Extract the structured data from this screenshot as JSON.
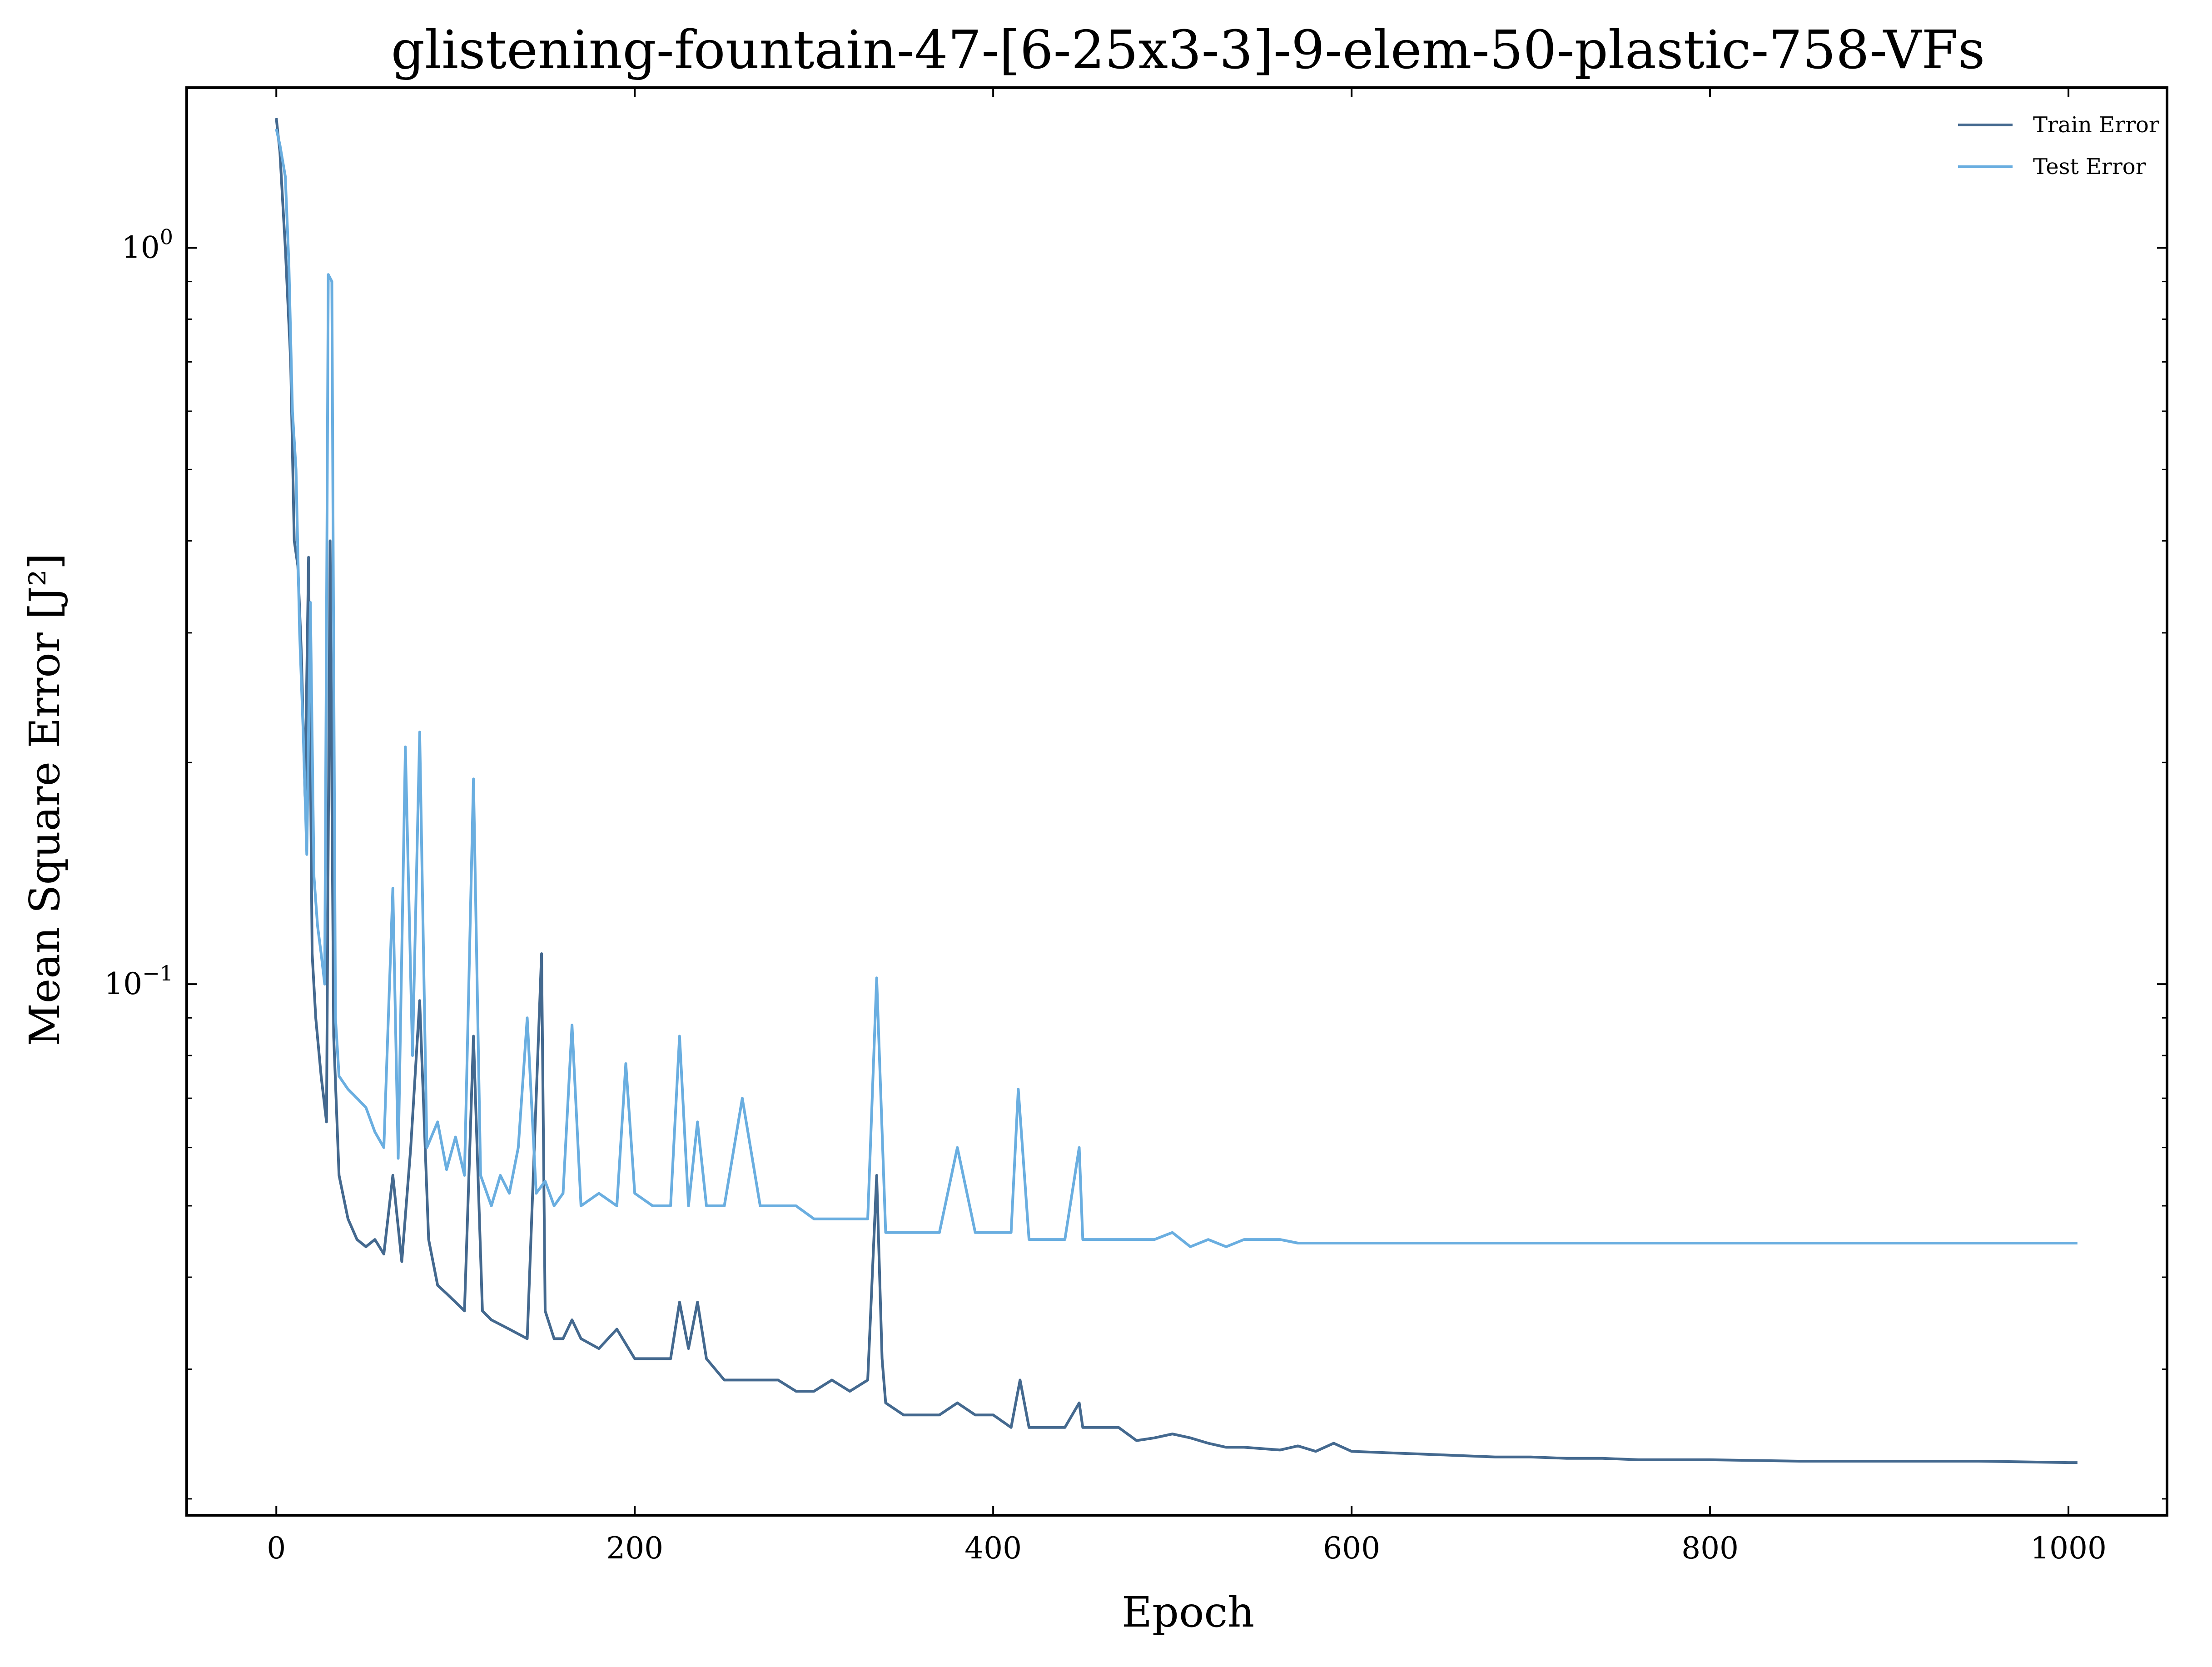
{
  "chart_data": {
    "type": "line",
    "title": "glistening-fountain-47-[6-25x3-3]-9-elem-50-plastic-758-VFs",
    "xlabel": "Epoch",
    "ylabel": "Mean Square Error [J²]",
    "yscale": "log",
    "xlim": [
      -50,
      1055
    ],
    "ylim": [
      0.019,
      1.65
    ],
    "xticks": [
      {
        "value": 0,
        "label": "0"
      },
      {
        "value": 200,
        "label": "200"
      },
      {
        "value": 400,
        "label": "400"
      },
      {
        "value": 600,
        "label": "600"
      },
      {
        "value": 800,
        "label": "800"
      },
      {
        "value": 1000,
        "label": "1000"
      }
    ],
    "yticks": [
      {
        "value": 1.0,
        "base": "10",
        "exp": "0"
      },
      {
        "value": 0.1,
        "base": "10",
        "exp": "−1"
      }
    ],
    "grid": false,
    "legend_position": "top-right",
    "series": [
      {
        "name": "Train Error",
        "color": "#44698f",
        "points": [
          [
            0,
            1.5
          ],
          [
            2,
            1.35
          ],
          [
            5,
            1.0
          ],
          [
            8,
            0.7
          ],
          [
            10,
            0.4
          ],
          [
            12,
            0.37
          ],
          [
            14,
            0.28
          ],
          [
            16,
            0.18
          ],
          [
            18,
            0.38
          ],
          [
            20,
            0.11
          ],
          [
            22,
            0.09
          ],
          [
            25,
            0.075
          ],
          [
            28,
            0.065
          ],
          [
            30,
            0.4
          ],
          [
            32,
            0.085
          ],
          [
            35,
            0.055
          ],
          [
            40,
            0.048
          ],
          [
            45,
            0.045
          ],
          [
            50,
            0.044
          ],
          [
            55,
            0.045
          ],
          [
            60,
            0.043
          ],
          [
            65,
            0.055
          ],
          [
            70,
            0.042
          ],
          [
            75,
            0.06
          ],
          [
            80,
            0.095
          ],
          [
            85,
            0.045
          ],
          [
            90,
            0.039
          ],
          [
            95,
            0.038
          ],
          [
            100,
            0.037
          ],
          [
            105,
            0.036
          ],
          [
            110,
            0.085
          ],
          [
            115,
            0.036
          ],
          [
            120,
            0.035
          ],
          [
            130,
            0.034
          ],
          [
            140,
            0.033
          ],
          [
            145,
            0.07
          ],
          [
            148,
            0.11
          ],
          [
            150,
            0.036
          ],
          [
            155,
            0.033
          ],
          [
            160,
            0.033
          ],
          [
            165,
            0.035
          ],
          [
            170,
            0.033
          ],
          [
            180,
            0.032
          ],
          [
            190,
            0.034
          ],
          [
            200,
            0.031
          ],
          [
            210,
            0.031
          ],
          [
            220,
            0.031
          ],
          [
            225,
            0.037
          ],
          [
            230,
            0.032
          ],
          [
            235,
            0.037
          ],
          [
            240,
            0.031
          ],
          [
            250,
            0.029
          ],
          [
            260,
            0.029
          ],
          [
            270,
            0.029
          ],
          [
            280,
            0.029
          ],
          [
            290,
            0.028
          ],
          [
            300,
            0.028
          ],
          [
            310,
            0.029
          ],
          [
            320,
            0.028
          ],
          [
            330,
            0.029
          ],
          [
            335,
            0.055
          ],
          [
            338,
            0.031
          ],
          [
            340,
            0.027
          ],
          [
            350,
            0.026
          ],
          [
            360,
            0.026
          ],
          [
            370,
            0.026
          ],
          [
            380,
            0.027
          ],
          [
            390,
            0.026
          ],
          [
            400,
            0.026
          ],
          [
            410,
            0.025
          ],
          [
            415,
            0.029
          ],
          [
            420,
            0.025
          ],
          [
            430,
            0.025
          ],
          [
            440,
            0.025
          ],
          [
            448,
            0.027
          ],
          [
            450,
            0.025
          ],
          [
            460,
            0.025
          ],
          [
            470,
            0.025
          ],
          [
            480,
            0.024
          ],
          [
            490,
            0.0242
          ],
          [
            500,
            0.0245
          ],
          [
            510,
            0.0242
          ],
          [
            520,
            0.0238
          ],
          [
            530,
            0.0235
          ],
          [
            540,
            0.0235
          ],
          [
            550,
            0.0234
          ],
          [
            560,
            0.0233
          ],
          [
            570,
            0.0236
          ],
          [
            580,
            0.0232
          ],
          [
            590,
            0.0238
          ],
          [
            600,
            0.0232
          ],
          [
            620,
            0.0231
          ],
          [
            640,
            0.023
          ],
          [
            660,
            0.0229
          ],
          [
            680,
            0.0228
          ],
          [
            700,
            0.0228
          ],
          [
            720,
            0.0227
          ],
          [
            740,
            0.0227
          ],
          [
            760,
            0.0226
          ],
          [
            780,
            0.0226
          ],
          [
            800,
            0.0226
          ],
          [
            850,
            0.0225
          ],
          [
            900,
            0.0225
          ],
          [
            950,
            0.0225
          ],
          [
            1000,
            0.0224
          ],
          [
            1005,
            0.0224
          ]
        ]
      },
      {
        "name": "Test Error",
        "color": "#6aaee0",
        "points": [
          [
            0,
            1.45
          ],
          [
            2,
            1.38
          ],
          [
            5,
            1.25
          ],
          [
            7,
            0.95
          ],
          [
            9,
            0.6
          ],
          [
            11,
            0.5
          ],
          [
            13,
            0.3
          ],
          [
            15,
            0.22
          ],
          [
            17,
            0.15
          ],
          [
            19,
            0.33
          ],
          [
            21,
            0.14
          ],
          [
            23,
            0.12
          ],
          [
            25,
            0.11
          ],
          [
            27,
            0.1
          ],
          [
            29,
            0.92
          ],
          [
            31,
            0.9
          ],
          [
            33,
            0.09
          ],
          [
            35,
            0.075
          ],
          [
            40,
            0.072
          ],
          [
            45,
            0.07
          ],
          [
            50,
            0.068
          ],
          [
            55,
            0.063
          ],
          [
            60,
            0.06
          ],
          [
            65,
            0.135
          ],
          [
            68,
            0.058
          ],
          [
            72,
            0.21
          ],
          [
            76,
            0.08
          ],
          [
            80,
            0.22
          ],
          [
            84,
            0.06
          ],
          [
            90,
            0.065
          ],
          [
            95,
            0.056
          ],
          [
            100,
            0.062
          ],
          [
            105,
            0.055
          ],
          [
            110,
            0.19
          ],
          [
            114,
            0.055
          ],
          [
            120,
            0.05
          ],
          [
            125,
            0.055
          ],
          [
            130,
            0.052
          ],
          [
            135,
            0.06
          ],
          [
            140,
            0.09
          ],
          [
            145,
            0.052
          ],
          [
            150,
            0.054
          ],
          [
            155,
            0.05
          ],
          [
            160,
            0.052
          ],
          [
            165,
            0.088
          ],
          [
            170,
            0.05
          ],
          [
            180,
            0.052
          ],
          [
            190,
            0.05
          ],
          [
            195,
            0.078
          ],
          [
            200,
            0.052
          ],
          [
            210,
            0.05
          ],
          [
            220,
            0.05
          ],
          [
            225,
            0.085
          ],
          [
            230,
            0.05
          ],
          [
            235,
            0.065
          ],
          [
            240,
            0.05
          ],
          [
            250,
            0.05
          ],
          [
            260,
            0.07
          ],
          [
            270,
            0.05
          ],
          [
            280,
            0.05
          ],
          [
            290,
            0.05
          ],
          [
            300,
            0.048
          ],
          [
            310,
            0.048
          ],
          [
            320,
            0.048
          ],
          [
            330,
            0.048
          ],
          [
            335,
            0.102
          ],
          [
            340,
            0.046
          ],
          [
            350,
            0.046
          ],
          [
            360,
            0.046
          ],
          [
            370,
            0.046
          ],
          [
            380,
            0.06
          ],
          [
            390,
            0.046
          ],
          [
            400,
            0.046
          ],
          [
            410,
            0.046
          ],
          [
            414,
            0.072
          ],
          [
            420,
            0.045
          ],
          [
            430,
            0.045
          ],
          [
            440,
            0.045
          ],
          [
            448,
            0.06
          ],
          [
            450,
            0.045
          ],
          [
            460,
            0.045
          ],
          [
            470,
            0.045
          ],
          [
            480,
            0.045
          ],
          [
            490,
            0.045
          ],
          [
            500,
            0.046
          ],
          [
            510,
            0.044
          ],
          [
            520,
            0.045
          ],
          [
            530,
            0.044
          ],
          [
            540,
            0.045
          ],
          [
            550,
            0.045
          ],
          [
            560,
            0.045
          ],
          [
            570,
            0.0445
          ],
          [
            580,
            0.0445
          ],
          [
            600,
            0.0445
          ],
          [
            620,
            0.0445
          ],
          [
            640,
            0.0445
          ],
          [
            660,
            0.0445
          ],
          [
            680,
            0.0445
          ],
          [
            700,
            0.0445
          ],
          [
            750,
            0.0445
          ],
          [
            800,
            0.0445
          ],
          [
            850,
            0.0445
          ],
          [
            900,
            0.0445
          ],
          [
            950,
            0.0445
          ],
          [
            1000,
            0.0445
          ],
          [
            1005,
            0.0445
          ]
        ]
      }
    ]
  }
}
